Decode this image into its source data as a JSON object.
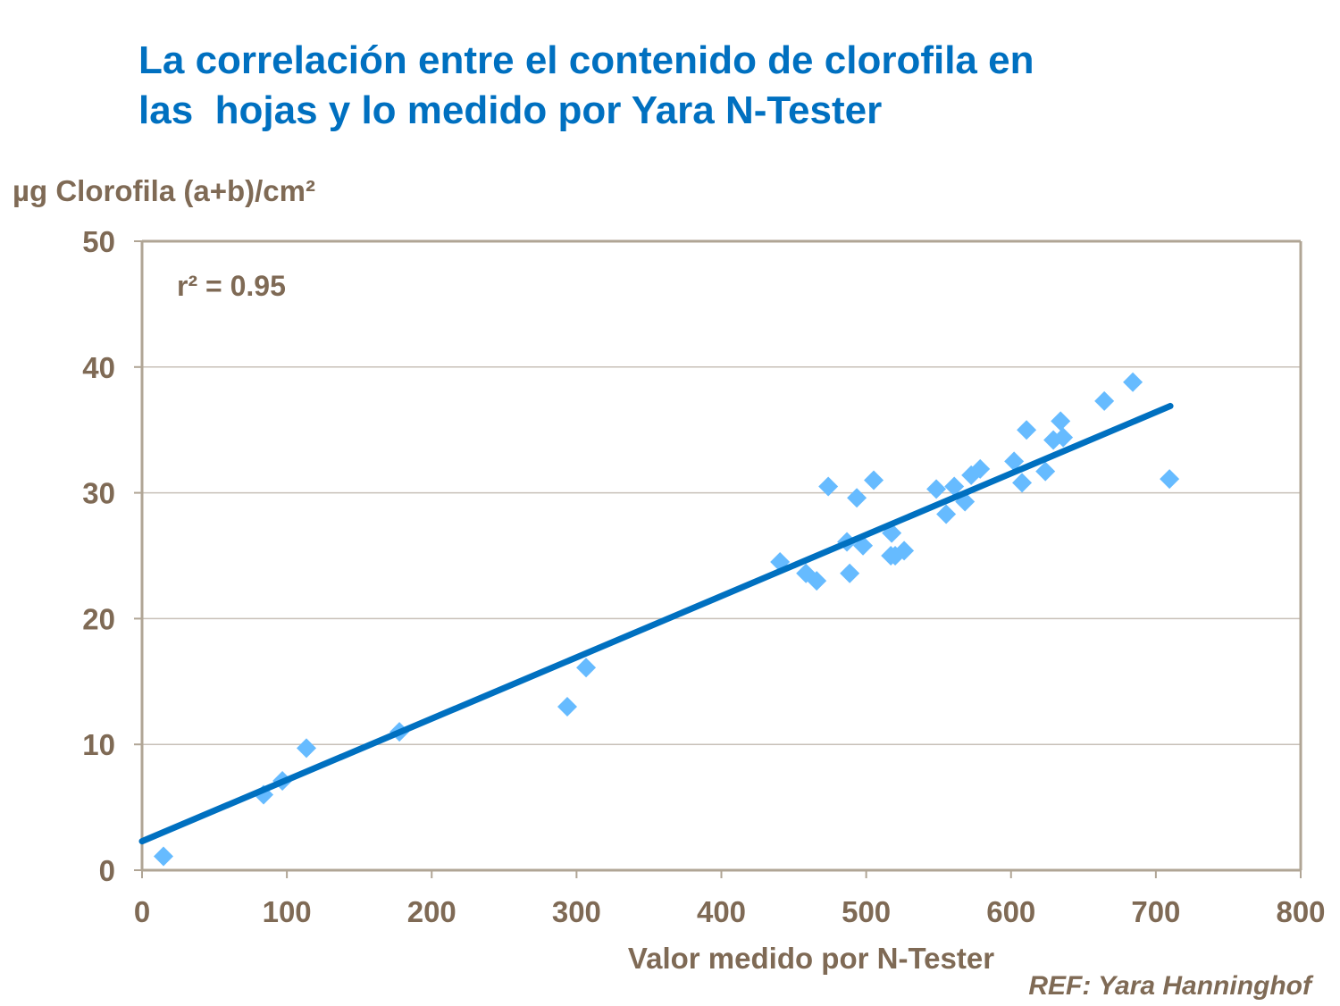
{
  "chart_data": {
    "type": "scatter",
    "title": "La correlación entre el contenido de clorofila en\nlas  hojas y lo medido por Yara N-Tester",
    "xlabel": "Valor medido por N-Tester",
    "ylabel": "µg Clorofila (a+b)/cm²",
    "xlim": [
      0,
      800
    ],
    "ylim": [
      0,
      50
    ],
    "xticks": [
      0,
      100,
      200,
      300,
      400,
      500,
      600,
      700,
      800
    ],
    "yticks": [
      0,
      10,
      20,
      30,
      40,
      50
    ],
    "grid": "horizontal",
    "annotation": "r² = 0.95",
    "reference": "REF: Yara Hanninghof",
    "colors": {
      "points": "#66BBFF",
      "trendline": "#0070C0",
      "title": "#0070C0",
      "text": "#7F6A55",
      "axis": "#B0A595",
      "grid": "#C8C0B8"
    },
    "points": [
      [
        14.8,
        1.1
      ],
      [
        83.9,
        6.0
      ],
      [
        96.9,
        7.1
      ],
      [
        113.5,
        9.7
      ],
      [
        177.7,
        11.0
      ],
      [
        293.6,
        13.0
      ],
      [
        306.6,
        16.1
      ],
      [
        440.5,
        24.5
      ],
      [
        458.4,
        23.6
      ],
      [
        465.8,
        23.0
      ],
      [
        473.8,
        30.5
      ],
      [
        486.7,
        26.1
      ],
      [
        488.6,
        23.6
      ],
      [
        493.5,
        29.6
      ],
      [
        497.8,
        25.8
      ],
      [
        505.2,
        31.0
      ],
      [
        517.6,
        26.8
      ],
      [
        517.0,
        25.0
      ],
      [
        520.0,
        25.0
      ],
      [
        526.2,
        25.4
      ],
      [
        548.4,
        30.3
      ],
      [
        555.2,
        28.3
      ],
      [
        560.8,
        30.5
      ],
      [
        568.2,
        29.3
      ],
      [
        572.5,
        31.4
      ],
      [
        578.7,
        31.9
      ],
      [
        602.1,
        32.5
      ],
      [
        607.6,
        30.8
      ],
      [
        610.7,
        35.0
      ],
      [
        623.7,
        31.7
      ],
      [
        629.2,
        34.2
      ],
      [
        634.2,
        35.7
      ],
      [
        636.0,
        34.4
      ],
      [
        664.4,
        37.3
      ],
      [
        684.1,
        38.8
      ],
      [
        709.4,
        31.1
      ]
    ],
    "trendline": {
      "x": [
        0,
        710
      ],
      "y": [
        2.3,
        36.9
      ]
    }
  }
}
